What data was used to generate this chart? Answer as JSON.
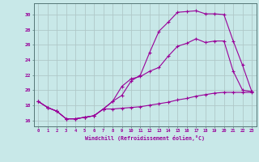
{
  "background_color": "#c8e8e8",
  "grid_color": "#b0c8c8",
  "line_color": "#990099",
  "xlabel": "Windchill (Refroidissement éolien,°C)",
  "ylabel_ticks": [
    16,
    18,
    20,
    22,
    24,
    26,
    28,
    30
  ],
  "xlim": [
    -0.5,
    23.5
  ],
  "ylim": [
    15.2,
    31.5
  ],
  "xticks": [
    0,
    1,
    2,
    3,
    4,
    5,
    6,
    7,
    8,
    9,
    10,
    11,
    12,
    13,
    14,
    15,
    16,
    17,
    18,
    19,
    20,
    21,
    22,
    23
  ],
  "line1_x": [
    0,
    1,
    2,
    3,
    4,
    5,
    6,
    7,
    8,
    9,
    10,
    11,
    12,
    13,
    14,
    15,
    16,
    17,
    18,
    19,
    20,
    21,
    22,
    23
  ],
  "line1_y": [
    18.5,
    17.7,
    17.2,
    16.2,
    16.2,
    16.4,
    16.6,
    17.5,
    18.5,
    19.3,
    21.2,
    22.0,
    25.0,
    27.8,
    29.0,
    30.3,
    30.4,
    30.5,
    30.1,
    30.1,
    30.0,
    26.5,
    23.3,
    19.8
  ],
  "line2_x": [
    0,
    1,
    2,
    3,
    4,
    5,
    6,
    7,
    8,
    9,
    10,
    11,
    12,
    13,
    14,
    15,
    16,
    17,
    18,
    19,
    20,
    21,
    22,
    23
  ],
  "line2_y": [
    18.5,
    17.7,
    17.2,
    16.2,
    16.2,
    16.4,
    16.6,
    17.5,
    18.5,
    20.5,
    21.5,
    21.8,
    22.5,
    23.0,
    24.5,
    25.8,
    26.2,
    26.8,
    26.3,
    26.5,
    26.5,
    22.5,
    20.0,
    19.8
  ],
  "line3_x": [
    0,
    1,
    2,
    3,
    4,
    5,
    6,
    7,
    8,
    9,
    10,
    11,
    12,
    13,
    14,
    15,
    16,
    17,
    18,
    19,
    20,
    21,
    22,
    23
  ],
  "line3_y": [
    18.5,
    17.7,
    17.2,
    16.2,
    16.2,
    16.4,
    16.6,
    17.5,
    17.5,
    17.6,
    17.7,
    17.8,
    18.0,
    18.2,
    18.4,
    18.7,
    18.9,
    19.2,
    19.4,
    19.6,
    19.7,
    19.7,
    19.7,
    19.7
  ]
}
